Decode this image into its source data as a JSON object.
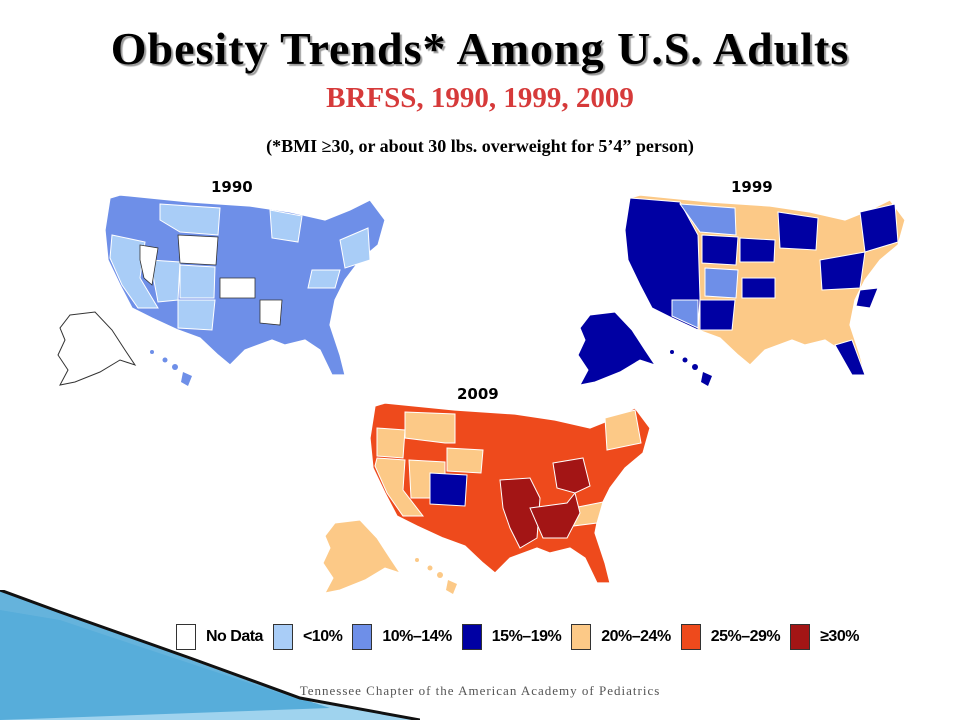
{
  "title": "Obesity Trends* Among U.S. Adults",
  "subtitle": "BRFSS, 1990, 1999, 2009",
  "note": "(*BMI ≥30, or about 30 lbs. overweight for 5’4” person)",
  "footer": "Tennessee Chapter of the American Academy of Pediatrics",
  "maps": [
    {
      "year": "1990",
      "main_class": "10%–14%",
      "alaska_class": "No Data"
    },
    {
      "year": "1999",
      "main_class": "20%–24%",
      "alaska_class": "15%–19%"
    },
    {
      "year": "2009",
      "main_class": "25%–29%",
      "alaska_class": "20%–24%"
    }
  ],
  "legend": [
    {
      "label": "No Data",
      "color": "#ffffff"
    },
    {
      "label": "<10%",
      "color": "#a9cdf7"
    },
    {
      "label": "10%–14%",
      "color": "#6e8fe8"
    },
    {
      "label": "15%–19%",
      "color": "#0000a3"
    },
    {
      "label": "20%–24%",
      "color": "#fcc987"
    },
    {
      "label": "25%–29%",
      "color": "#ee4a1c"
    },
    {
      "label": "≥30%",
      "color": "#a31515"
    }
  ],
  "colors": {
    "title_shadow": "#9a9a9a",
    "subtitle": "#d63a3a",
    "decor_light": "#9fd3ee",
    "decor_dark": "#4aa6d6"
  }
}
